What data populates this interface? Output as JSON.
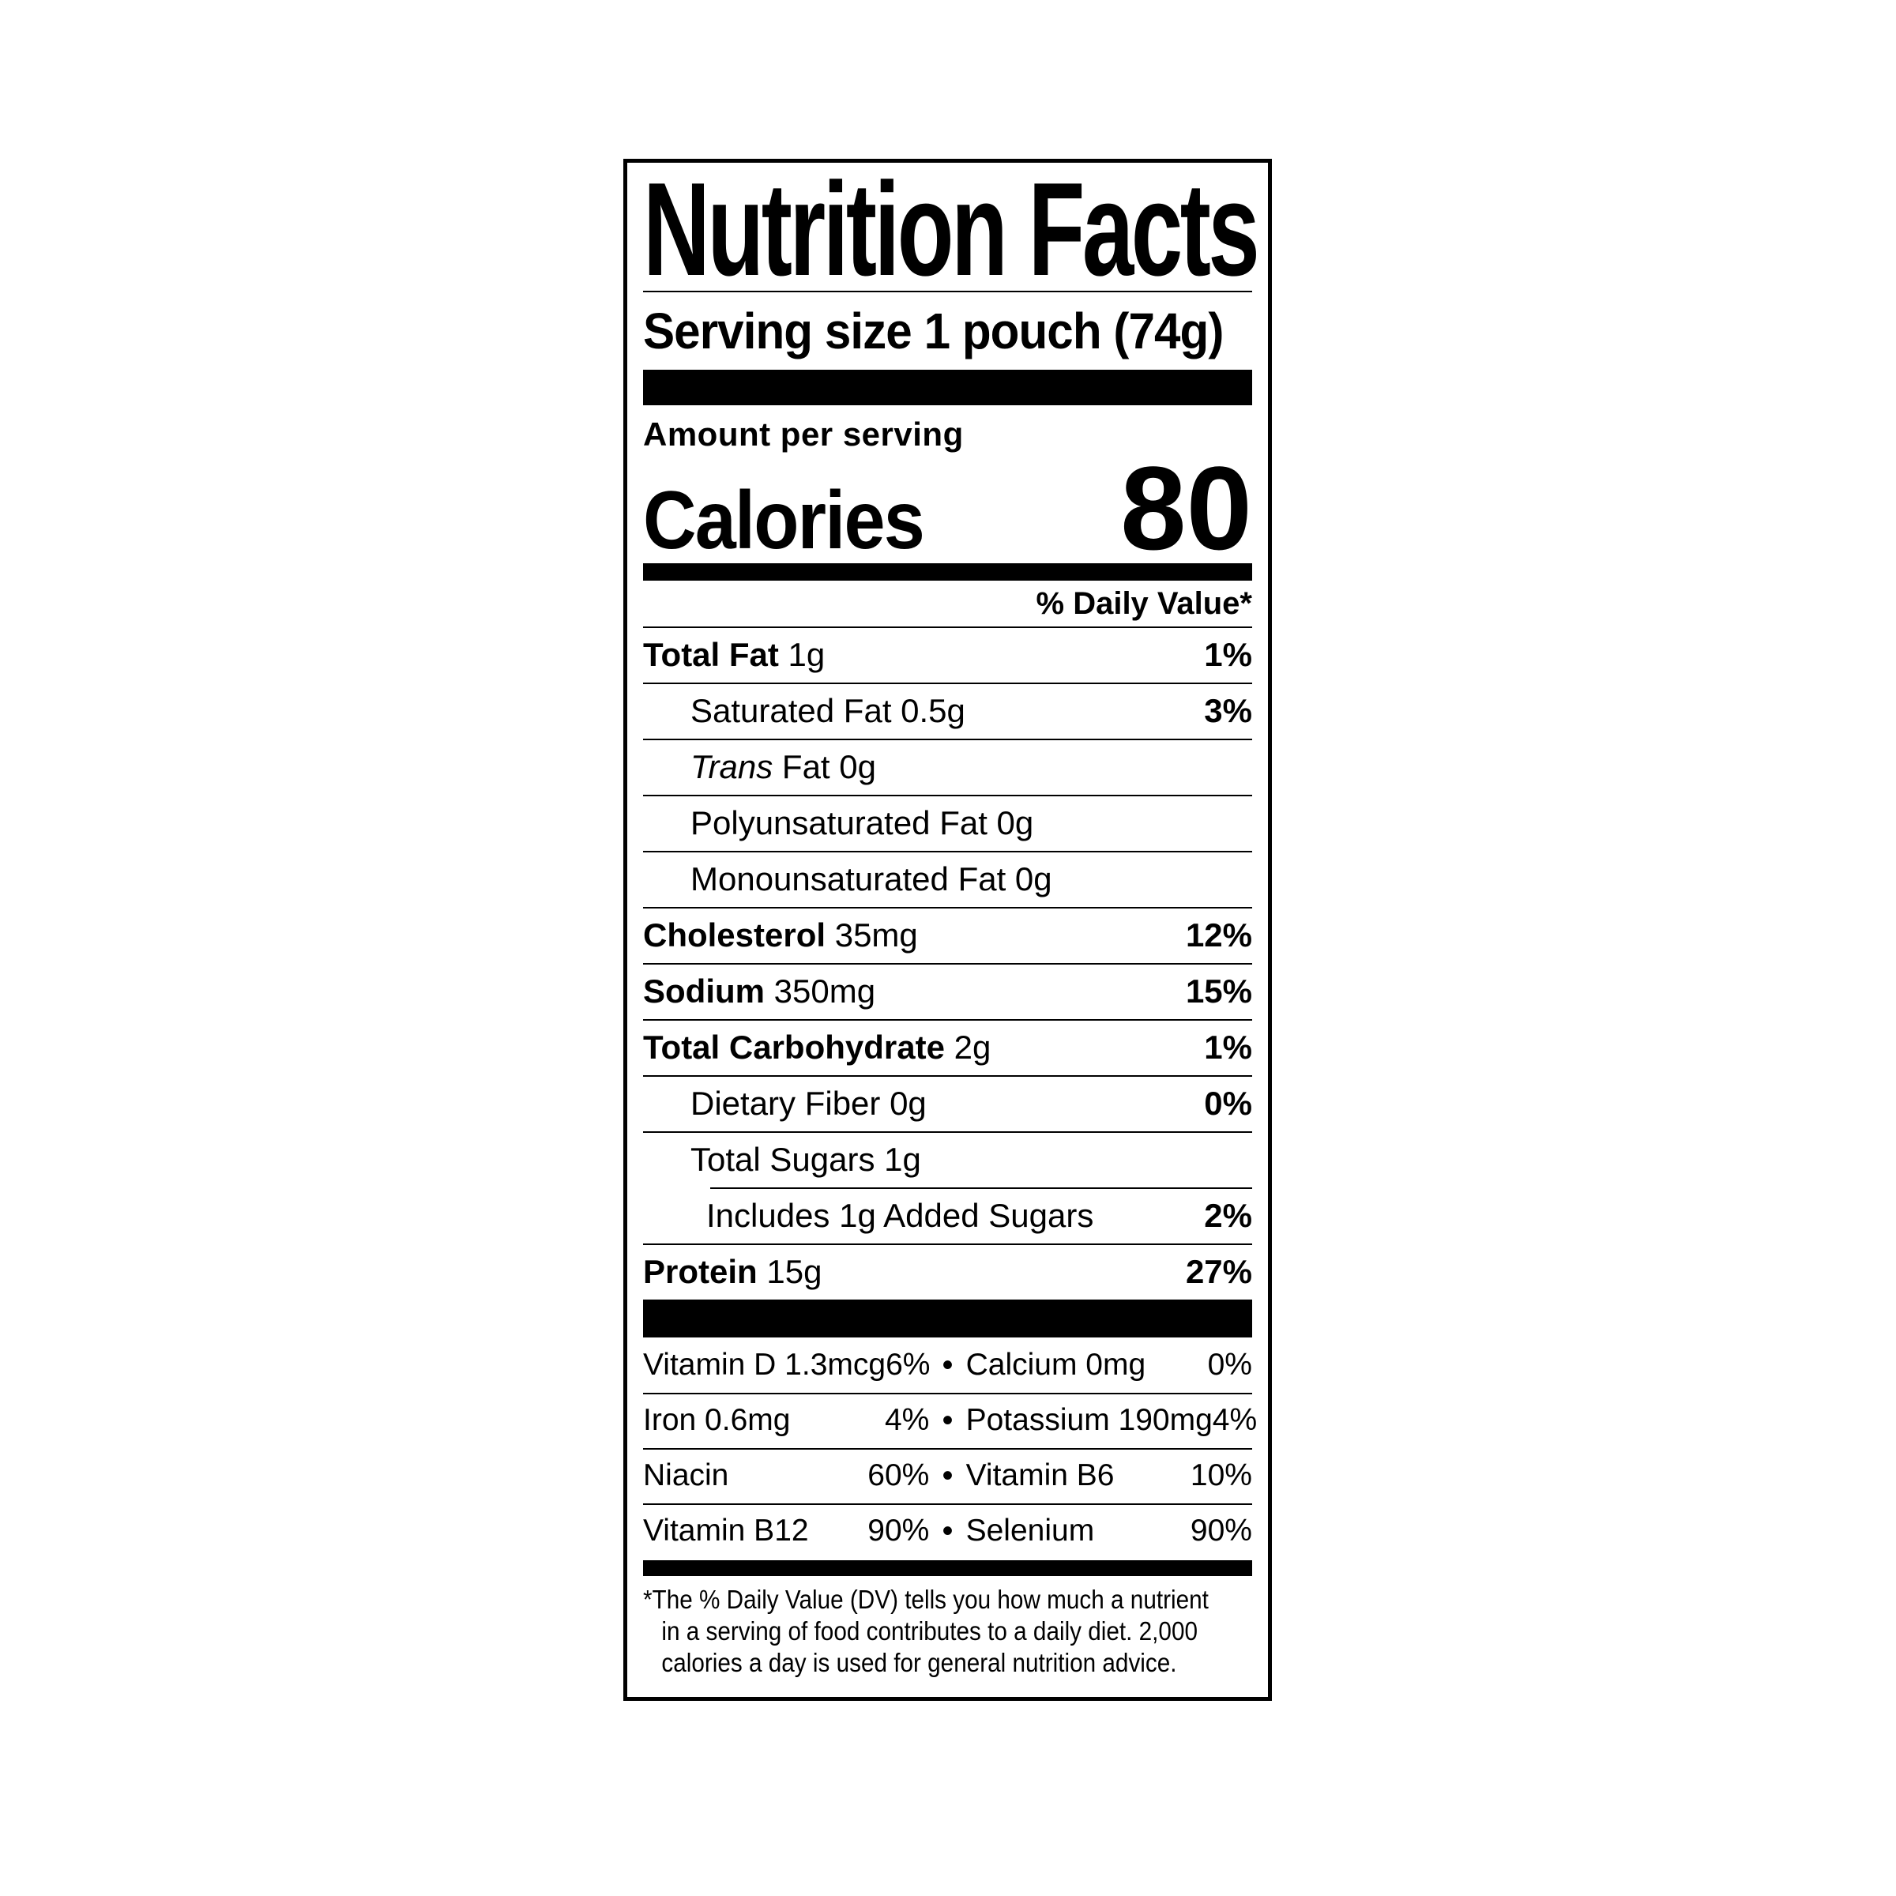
{
  "label": {
    "title": "Nutrition Facts",
    "serving": {
      "label": "Serving size",
      "value": "1 pouch (74g)"
    },
    "amount_per_serving": "Amount per serving",
    "calories": {
      "label": "Calories",
      "value": "80"
    },
    "daily_value_header": "% Daily Value*",
    "rows": [
      {
        "name": "Total Fat",
        "amount": " 1g",
        "dv": "1%"
      },
      {
        "name": "Saturated Fat",
        "amount": " 0.5g",
        "dv": "3%"
      },
      {
        "name_italic": "Trans",
        "amount": " Fat 0g",
        "dv": ""
      },
      {
        "name": "Polyunsaturated Fat",
        "amount": " 0g",
        "dv": ""
      },
      {
        "name": "Monounsaturated Fat",
        "amount": " 0g",
        "dv": ""
      },
      {
        "name": "Cholesterol",
        "amount": " 35mg",
        "dv": "12%"
      },
      {
        "name": "Sodium",
        "amount": " 350mg",
        "dv": "15%"
      },
      {
        "name": "Total Carbohydrate",
        "amount": " 2g",
        "dv": "1%"
      },
      {
        "name": "Dietary Fiber",
        "amount": " 0g",
        "dv": "0%"
      },
      {
        "name": "Total Sugars",
        "amount": " 1g",
        "dv": ""
      },
      {
        "name": "Includes 1g Added Sugars",
        "amount": "",
        "dv": "2%"
      },
      {
        "name": "Protein",
        "amount": " 15g",
        "dv": "27%"
      }
    ],
    "vitamins": {
      "bullet": "•",
      "rows": [
        {
          "left_name": "Vitamin D 1.3mcg",
          "left_pct": "6%",
          "right_name": "Calcium 0mg",
          "right_pct": "0%"
        },
        {
          "left_name": "Iron 0.6mg",
          "left_pct": "4%",
          "right_name": "Potassium 190mg",
          "right_pct": "4%"
        },
        {
          "left_name": "Niacin",
          "left_pct": "60%",
          "right_name": "Vitamin B6",
          "right_pct": "10%"
        },
        {
          "left_name": "Vitamin B12",
          "left_pct": "90%",
          "right_name": "Selenium",
          "right_pct": "90%"
        }
      ]
    },
    "footnote": {
      "asterisk": "*",
      "lines": [
        "The % Daily Value (DV) tells you how much a nutrient",
        "in a serving of food contributes to a daily diet. 2,000",
        "calories a day is used for general nutrition advice."
      ]
    },
    "colors": {
      "ink": "#000000",
      "background": "#ffffff"
    }
  }
}
